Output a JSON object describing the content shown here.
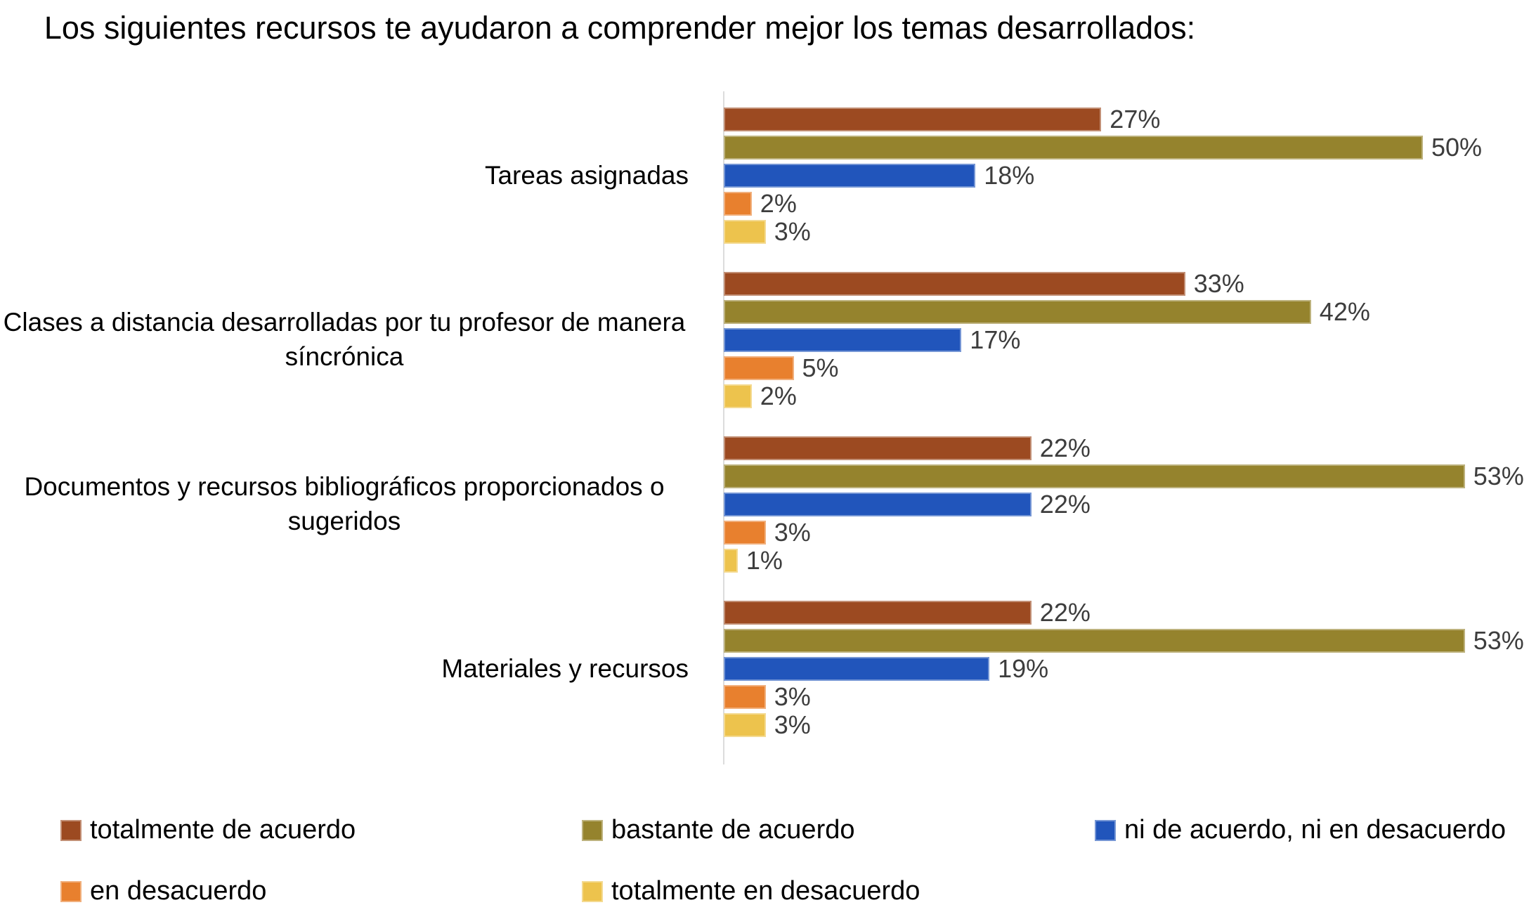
{
  "chart_data": {
    "type": "bar",
    "orientation": "horizontal",
    "title": "Los siguientes recursos te ayudaron a comprender mejor los temas desarrollados:",
    "categories": [
      "Tareas asignadas",
      "Clases a distancia desarrolladas por tu profesor de manera síncrónica",
      "Documentos y recursos bibliográficos proporcionados o sugeridos",
      "Materiales y recursos"
    ],
    "series": [
      {
        "name": "totalmente de acuerdo",
        "color": "#9C4A21",
        "values": [
          27,
          33,
          22,
          22
        ]
      },
      {
        "name": "bastante de acuerdo",
        "color": "#95832D",
        "values": [
          50,
          42,
          53,
          53
        ]
      },
      {
        "name": "ni de acuerdo, ni en desacuerdo",
        "color": "#2155BB",
        "values": [
          18,
          17,
          22,
          19
        ]
      },
      {
        "name": "en desacuerdo",
        "color": "#E8802E",
        "values": [
          2,
          5,
          3,
          3
        ]
      },
      {
        "name": "totalmente en desacuerdo",
        "color": "#EDC34D",
        "values": [
          3,
          2,
          1,
          3
        ]
      }
    ],
    "value_suffix": "%",
    "xlim": [
      0,
      55
    ],
    "grid": false,
    "axis_line_color": "#dcdcdc",
    "value_label_color": "#3d3d3d",
    "text_color": "#000000",
    "background_color": "#ffffff",
    "legend_position": "bottom"
  }
}
